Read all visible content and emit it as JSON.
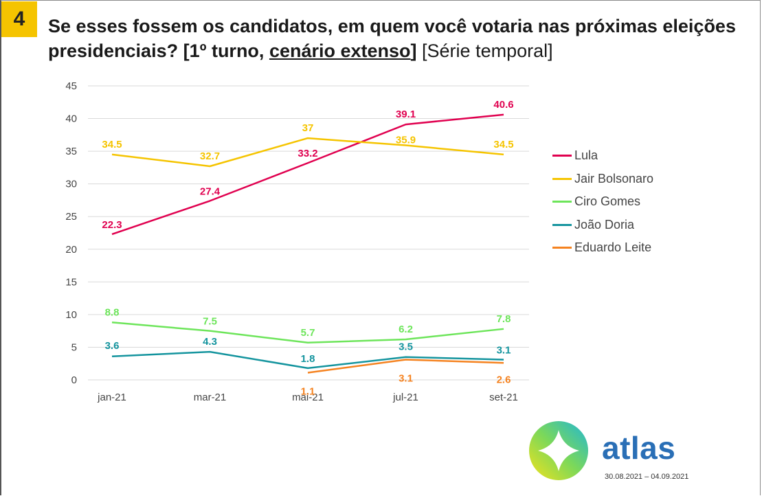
{
  "question_number": "4",
  "title": {
    "part1": "Se esses fossem os candidatos, em quem você votaria nas próximas eleições presidenciais? [1º turno, ",
    "underlined": "cenário extenso",
    "part2": "]",
    "suffix": " [Série temporal]"
  },
  "brand": "atlas",
  "dates": "30.08.2021 – 04.09.2021",
  "chart_data": {
    "type": "line",
    "categories": [
      "jan-21",
      "mar-21",
      "mai-21",
      "jul-21",
      "set-21"
    ],
    "ylim": [
      0,
      45
    ],
    "yticks": [
      0,
      5,
      10,
      15,
      20,
      25,
      30,
      35,
      40,
      45
    ],
    "grid": true,
    "legend_position": "right",
    "series": [
      {
        "name": "Lula",
        "color": "#e0004f",
        "values": [
          22.3,
          27.4,
          33.2,
          39.1,
          40.6
        ],
        "labels": [
          "22.3",
          "27.4",
          "33.2",
          "39.1",
          "40.6"
        ]
      },
      {
        "name": "Jair Bolsonaro",
        "color": "#f5c400",
        "values": [
          34.5,
          32.7,
          37,
          35.9,
          34.5
        ],
        "labels": [
          "34.5",
          "32.7",
          "37",
          "35.9",
          "34.5"
        ]
      },
      {
        "name": "Ciro Gomes",
        "color": "#6de55a",
        "values": [
          8.8,
          7.5,
          5.7,
          6.2,
          7.8
        ],
        "labels": [
          "8.8",
          "7.5",
          "5.7",
          "6.2",
          "7.8"
        ]
      },
      {
        "name": "João Doria",
        "color": "#14949e",
        "values": [
          3.6,
          4.3,
          1.8,
          3.5,
          3.1
        ],
        "labels": [
          "3.6",
          "4.3",
          "1.8",
          "3.5",
          "3.1"
        ]
      },
      {
        "name": "Eduardo Leite",
        "color": "#f5821f",
        "values": [
          null,
          null,
          1.1,
          3.1,
          2.6
        ],
        "labels": [
          null,
          null,
          "1.1",
          "3.1",
          "2.6"
        ]
      }
    ]
  }
}
